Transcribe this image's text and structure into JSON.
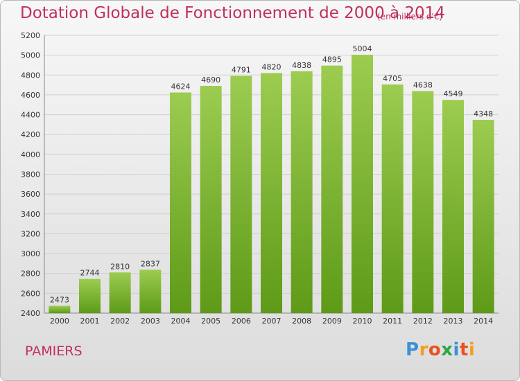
{
  "title": "Dotation Globale de Fonctionnement de 2000 à 2014",
  "subtitle": "(en milliers d'€)",
  "city": "PAMIERS",
  "logo": {
    "text": "Proxiti",
    "colors": [
      "#3b8fd6",
      "#f0a020",
      "#e8521c",
      "#2aa848",
      "#3b8fd6",
      "#e8521c",
      "#f0a020"
    ]
  },
  "colors": {
    "bar_top": "#9ccc50",
    "bar_bottom": "#5e9a18",
    "title": "#c0305a"
  },
  "chart_data": {
    "type": "bar",
    "categories": [
      "2000",
      "2001",
      "2002",
      "2003",
      "2004",
      "2005",
      "2006",
      "2007",
      "2008",
      "2009",
      "2010",
      "2011",
      "2012",
      "2013",
      "2014"
    ],
    "values": [
      2473,
      2744,
      2810,
      2837,
      4624,
      4690,
      4791,
      4820,
      4838,
      4895,
      5004,
      4705,
      4638,
      4549,
      4348
    ],
    "ylim": [
      2400,
      5200
    ],
    "yticks": [
      2400,
      2600,
      2800,
      3000,
      3200,
      3400,
      3600,
      3800,
      4000,
      4200,
      4400,
      4600,
      4800,
      5000,
      5200
    ],
    "grid": true,
    "title": "Dotation Globale de Fonctionnement de 2000 à 2014",
    "xlabel": "",
    "ylabel": ""
  }
}
